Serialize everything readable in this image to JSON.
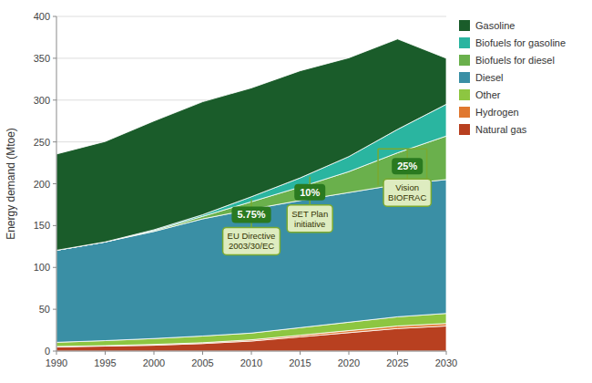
{
  "chart_data": {
    "type": "area",
    "stacked": true,
    "x": [
      1990,
      1995,
      2000,
      2005,
      2010,
      2015,
      2020,
      2025,
      2030
    ],
    "series": [
      {
        "name": "Natural gas",
        "color": "#b84020",
        "values": [
          5,
          6,
          7,
          9,
          12,
          17,
          22,
          27,
          30
        ]
      },
      {
        "name": "Hydrogen",
        "color": "#e07830",
        "values": [
          0.5,
          0.5,
          1,
          1,
          1.5,
          2,
          2.5,
          3,
          3
        ]
      },
      {
        "name": "Other",
        "color": "#8dc641",
        "values": [
          5,
          6,
          7,
          8,
          8,
          9,
          10,
          11,
          12
        ]
      },
      {
        "name": "Diesel",
        "color": "#3a8fa5",
        "values": [
          110,
          118,
          128,
          140,
          148,
          152,
          155,
          158,
          160
        ]
      },
      {
        "name": "Biofuels for diesel",
        "color": "#6ab04c",
        "values": [
          0,
          0,
          1,
          3,
          9,
          16,
          25,
          38,
          52
        ]
      },
      {
        "name": "Biofuels for gasoline",
        "color": "#2ab5a0",
        "values": [
          0,
          0,
          1,
          2,
          6,
          11,
          18,
          28,
          38
        ]
      },
      {
        "name": "Gasoline",
        "color": "#1a5c2a",
        "values": [
          115,
          120,
          130,
          135,
          130,
          128,
          118,
          108,
          55
        ]
      }
    ],
    "ylabel": "Energy demand (Mtoe)",
    "xlim": [
      1990,
      2030
    ],
    "xticks": [
      1990,
      1995,
      2000,
      2005,
      2010,
      2015,
      2020,
      2025,
      2030
    ],
    "ylim": [
      0,
      400
    ],
    "yticks": [
      0,
      50,
      100,
      150,
      200,
      250,
      300,
      350,
      400
    ],
    "grid": true,
    "legend": "right",
    "annotations": [
      {
        "label": "5.75%",
        "text": "EU Directive\n2003/30/EC",
        "x": 2010,
        "y": 163
      },
      {
        "label": "10%",
        "text": "SET Plan\ninitiative",
        "x": 2016,
        "y": 190
      },
      {
        "label": "25%",
        "text": "Vision\nBIOFRAC",
        "x": 2026,
        "y": 221,
        "span": [
          2023,
          2028
        ]
      }
    ]
  }
}
